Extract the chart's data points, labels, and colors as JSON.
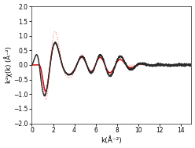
{
  "title": "",
  "xlabel": "k(Å⁻²)",
  "ylabel": "k²χ(k) (Å⁻²)",
  "xlim": [
    0,
    15
  ],
  "ylim": [
    -2.0,
    2.0
  ],
  "xticks": [
    0,
    2,
    4,
    6,
    8,
    10,
    12,
    14
  ],
  "yticks": [
    -2.0,
    -1.5,
    -1.0,
    -0.5,
    0.0,
    0.5,
    1.0,
    1.5,
    2.0
  ],
  "black_solid_color": "#2a2a2a",
  "black_dotted_color": "#888888",
  "red_solid_color": "#cc0000",
  "red_dotted_color": "#ff8888",
  "lw_black_solid": 1.0,
  "lw_black_dotted": 0.8,
  "lw_red_solid": 1.0,
  "lw_red_dotted": 0.8,
  "background_color": "#ffffff"
}
